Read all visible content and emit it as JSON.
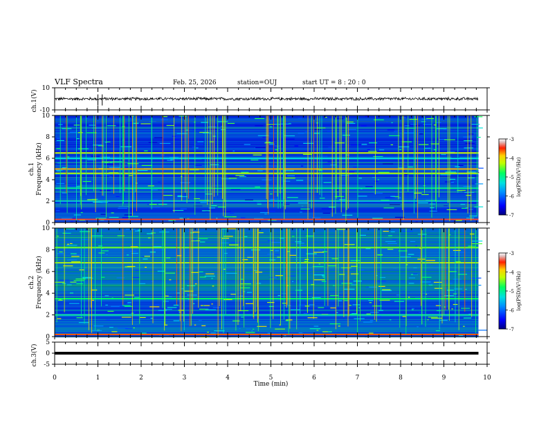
{
  "header": {
    "title": "VLF Spectra",
    "date": "Feb. 25, 2026",
    "station": "station=OUJ",
    "start": "start  UT =   8 : 20 : 0"
  },
  "colors": {
    "background": "#ffffff",
    "waveform": "#000000",
    "spectrogram_base": "#0000b4"
  },
  "chart_data": [
    {
      "type": "line",
      "panel": "ch1-waveform",
      "ylabel": "ch.1(V)",
      "ylim": [
        -10,
        10
      ],
      "yticks": [
        "10",
        "-10"
      ],
      "x_unit": "min",
      "xlim": [
        0,
        10
      ],
      "data_extent_x": [
        0,
        9.8
      ],
      "baseline_value": 0,
      "amplitude_approx": 1.5
    },
    {
      "type": "heatmap",
      "panel": "ch1-spectrogram",
      "ylabel": "ch.1\nFrequency (kHz)",
      "ylim": [
        0,
        10
      ],
      "yticks": [
        "0",
        "2",
        "4",
        "6",
        "8",
        "10"
      ],
      "xlim": [
        0,
        10
      ],
      "data_extent_x": [
        0,
        9.8
      ],
      "colorbar": {
        "label": "log(PSD)(V²/Hz)",
        "range": [
          -7,
          -3
        ],
        "ticks": [
          "-3",
          "-4",
          "-5",
          "-6",
          "-7"
        ]
      },
      "bands": [
        {
          "freq_khz": 0.3,
          "level": -3.4
        },
        {
          "freq_khz": 2.0,
          "level": -5.6
        },
        {
          "freq_khz": 3.2,
          "level": -5.0
        },
        {
          "freq_khz": 4.6,
          "level": -4.3
        },
        {
          "freq_khz": 5.0,
          "level": -3.8
        },
        {
          "freq_khz": 6.0,
          "level": -5.4
        },
        {
          "freq_khz": 6.5,
          "level": -4.2
        }
      ]
    },
    {
      "type": "heatmap",
      "panel": "ch2-spectrogram",
      "ylabel": "ch.2\nFrequency (kHz)",
      "ylim": [
        0,
        10
      ],
      "yticks": [
        "0",
        "2",
        "4",
        "6",
        "8",
        "10"
      ],
      "xlim": [
        0,
        10
      ],
      "data_extent_x": [
        0,
        9.8
      ],
      "colorbar": {
        "label": "log(PSD)(V²/Hz)",
        "range": [
          -7,
          -3
        ],
        "ticks": [
          "-3",
          "-4",
          "-5",
          "-6",
          "-7"
        ]
      },
      "bands": [
        {
          "freq_khz": 0.2,
          "level": -3.6
        },
        {
          "freq_khz": 2.0,
          "level": -5.2
        },
        {
          "freq_khz": 3.5,
          "level": -4.8
        },
        {
          "freq_khz": 6.8,
          "level": -4.2
        },
        {
          "freq_khz": 8.2,
          "level": -4.5
        }
      ]
    },
    {
      "type": "line",
      "panel": "ch3-waveform",
      "ylabel": "ch.3(V)",
      "ylim": [
        -5,
        5
      ],
      "yticks": [
        "5",
        "0",
        "-5"
      ],
      "xlim": [
        0,
        10
      ],
      "data_extent_x": [
        0,
        9.8
      ],
      "baseline_value": 0,
      "amplitude_approx": 0.3
    }
  ],
  "x_axis": {
    "label": "Time (min)",
    "ticks": [
      "0",
      "1",
      "2",
      "3",
      "4",
      "5",
      "6",
      "7",
      "8",
      "9",
      "10"
    ]
  }
}
